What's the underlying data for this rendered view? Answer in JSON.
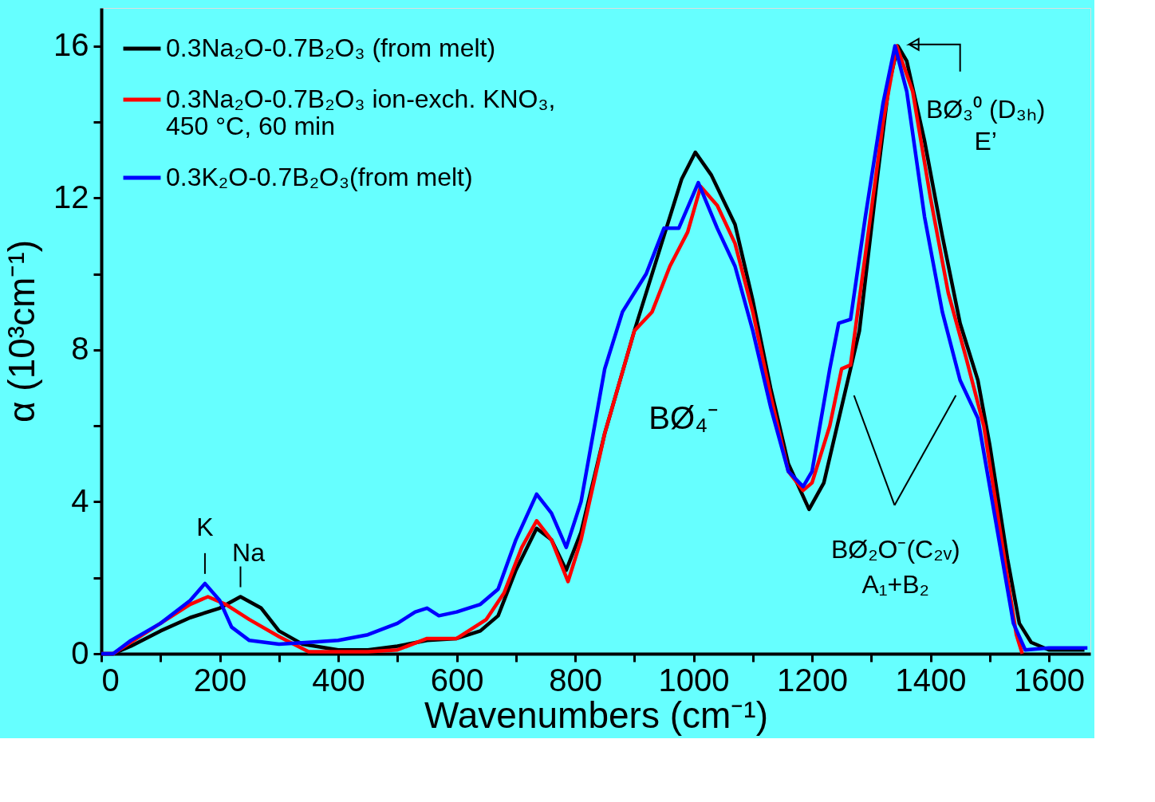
{
  "chart_data": {
    "type": "line",
    "xlabel": "Wavenumbers (cm⁻¹)",
    "ylabel": "α (10³cm⁻¹)",
    "xlim": [
      0,
      1670
    ],
    "ylim": [
      0,
      17
    ],
    "xticks": [
      0,
      {
        "value": 100,
        "label": null
      },
      200,
      {
        "value": 300,
        "label": null
      },
      400,
      {
        "value": 500,
        "label": null
      },
      600,
      {
        "value": 700,
        "label": null
      },
      800,
      {
        "value": 900,
        "label": null
      },
      1000,
      {
        "value": 1100,
        "label": null
      },
      1200,
      {
        "value": 1300,
        "label": null
      },
      1400,
      {
        "value": 1500,
        "label": null
      },
      1600
    ],
    "yticks": [
      0,
      {
        "value": 2,
        "label": null
      },
      4,
      {
        "value": 6,
        "label": null
      },
      8,
      {
        "value": 10,
        "label": null
      },
      12,
      {
        "value": 14,
        "label": null
      },
      16
    ],
    "grid": false,
    "legend": "top left",
    "line_style": "solid",
    "marker": "none",
    "series": [
      {
        "name": "0.3Na₂O-0.7B₂O₃ (from melt)",
        "color": "#000000",
        "x": [
          0,
          20,
          50,
          100,
          150,
          200,
          235,
          270,
          300,
          340,
          400,
          450,
          500,
          550,
          600,
          640,
          670,
          700,
          735,
          760,
          785,
          810,
          850,
          900,
          950,
          980,
          1003,
          1030,
          1070,
          1100,
          1130,
          1160,
          1195,
          1220,
          1250,
          1280,
          1310,
          1330,
          1345,
          1360,
          1390,
          1420,
          1450,
          1480,
          1500,
          1530,
          1550,
          1570,
          1600,
          1660
        ],
        "values": [
          0,
          0,
          0.2,
          0.6,
          0.95,
          1.2,
          1.5,
          1.2,
          0.6,
          0.25,
          0.1,
          0.1,
          0.2,
          0.35,
          0.4,
          0.6,
          1.0,
          2.2,
          3.3,
          3.0,
          2.2,
          3.2,
          5.8,
          8.5,
          11.0,
          12.5,
          13.2,
          12.6,
          11.3,
          9.3,
          7.0,
          5.0,
          3.8,
          4.5,
          6.5,
          8.5,
          12.5,
          15.0,
          16.0,
          15.6,
          13.5,
          11.0,
          8.7,
          7.2,
          5.5,
          2.5,
          0.8,
          0.3,
          0.1,
          0.1
        ]
      },
      {
        "name": "0.3Na₂O-0.7B₂O₃ ion-exch. KNO₃,\n450 °C, 60 min",
        "color": "#ff0000",
        "x": [
          0,
          20,
          50,
          100,
          150,
          180,
          210,
          250,
          300,
          350,
          400,
          450,
          500,
          550,
          600,
          650,
          680,
          710,
          735,
          760,
          788,
          810,
          850,
          900,
          930,
          960,
          990,
          1012,
          1040,
          1070,
          1100,
          1130,
          1160,
          1185,
          1200,
          1230,
          1250,
          1265,
          1290,
          1320,
          1343,
          1370,
          1400,
          1430,
          1460,
          1490,
          1520,
          1545,
          1555
        ],
        "values": [
          0,
          0,
          0.3,
          0.8,
          1.3,
          1.5,
          1.3,
          0.9,
          0.45,
          0.05,
          0.05,
          0.05,
          0.1,
          0.4,
          0.4,
          0.9,
          1.6,
          2.8,
          3.5,
          3.0,
          1.9,
          3.0,
          5.8,
          8.5,
          9.0,
          10.2,
          11.1,
          12.3,
          11.8,
          10.8,
          9.0,
          6.8,
          4.8,
          4.3,
          4.5,
          6.0,
          7.5,
          7.6,
          10.5,
          14.0,
          16.0,
          14.8,
          12.0,
          9.5,
          7.8,
          6.0,
          3.0,
          0.5,
          0
        ]
      },
      {
        "name": "0.3K₂O-0.7B₂O₃(from melt)",
        "color": "#0000ff",
        "x": [
          0,
          20,
          50,
          100,
          150,
          175,
          200,
          220,
          250,
          300,
          350,
          400,
          450,
          500,
          530,
          550,
          570,
          600,
          640,
          670,
          700,
          735,
          760,
          785,
          810,
          850,
          880,
          920,
          950,
          975,
          1008,
          1040,
          1070,
          1100,
          1130,
          1160,
          1185,
          1200,
          1230,
          1245,
          1265,
          1290,
          1320,
          1340,
          1360,
          1390,
          1420,
          1450,
          1480,
          1510,
          1540,
          1560,
          1600,
          1665
        ],
        "values": [
          0,
          0,
          0.35,
          0.8,
          1.4,
          1.85,
          1.4,
          0.7,
          0.35,
          0.25,
          0.3,
          0.35,
          0.5,
          0.8,
          1.1,
          1.2,
          1.0,
          1.1,
          1.3,
          1.7,
          3.0,
          4.2,
          3.7,
          2.8,
          4.0,
          7.5,
          9.0,
          10.0,
          11.2,
          11.2,
          12.4,
          11.2,
          10.2,
          8.5,
          6.5,
          4.8,
          4.4,
          4.8,
          7.5,
          8.7,
          8.8,
          11.5,
          14.5,
          16.0,
          14.8,
          11.5,
          9.0,
          7.2,
          6.2,
          3.5,
          0.8,
          0.1,
          0.15,
          0.15
        ]
      }
    ],
    "annotations": [
      {
        "text": "K",
        "x": 175,
        "y": 1.85
      },
      {
        "text": "Na",
        "x": 235,
        "y": 1.5
      },
      "BØ₄⁻",
      {
        "text": "BØ₃⁰ (D₃ₕ)\nE’",
        "x": 1345,
        "y": 16
      },
      "BØ₂O⁻(C₂ᵥ)\nA₁+B₂"
    ]
  }
}
